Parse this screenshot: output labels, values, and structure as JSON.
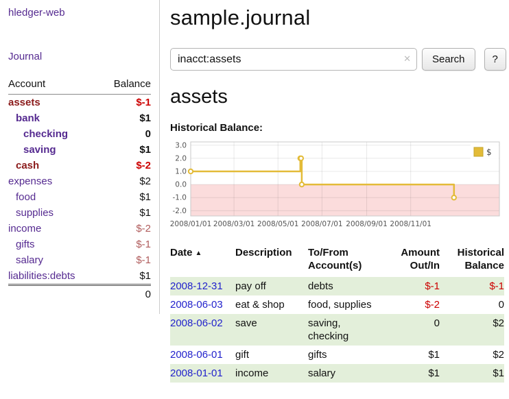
{
  "sidebar": {
    "app_title": "hledger-web",
    "journal_label": "Journal",
    "accounts": {
      "account_header": "Account",
      "balance_header": "Balance",
      "rows": [
        {
          "account": "assets",
          "balance": "$-1",
          "depth": 0,
          "bold": true,
          "acct_color": "danger",
          "bal_color": "danger"
        },
        {
          "account": "bank",
          "balance": "$1",
          "depth": 1,
          "bold": true,
          "acct_color": "link",
          "bal_color": "normal"
        },
        {
          "account": "checking",
          "balance": "0",
          "depth": 2,
          "bold": true,
          "acct_color": "link",
          "bal_color": "normal"
        },
        {
          "account": "saving",
          "balance": "$1",
          "depth": 2,
          "bold": true,
          "acct_color": "link",
          "bal_color": "normal"
        },
        {
          "account": "cash",
          "balance": "$-2",
          "depth": 1,
          "bold": true,
          "acct_color": "danger",
          "bal_color": "danger"
        },
        {
          "account": "expenses",
          "balance": "$2",
          "depth": 0,
          "bold": false,
          "acct_color": "link",
          "bal_color": "normal"
        },
        {
          "account": "food",
          "balance": "$1",
          "depth": 1,
          "bold": false,
          "acct_color": "link",
          "bal_color": "normal"
        },
        {
          "account": "supplies",
          "balance": "$1",
          "depth": 1,
          "bold": false,
          "acct_color": "link",
          "bal_color": "normal"
        },
        {
          "account": "income",
          "balance": "$-2",
          "depth": 0,
          "bold": false,
          "acct_color": "link",
          "bal_color": "rose"
        },
        {
          "account": "gifts",
          "balance": "$-1",
          "depth": 1,
          "bold": false,
          "acct_color": "link",
          "bal_color": "rose"
        },
        {
          "account": "salary",
          "balance": "$-1",
          "depth": 1,
          "bold": false,
          "acct_color": "link",
          "bal_color": "rose"
        },
        {
          "account": "liabilities:debts",
          "balance": "$1",
          "depth": 0,
          "bold": false,
          "acct_color": "link",
          "bal_color": "normal"
        }
      ],
      "total": "0"
    }
  },
  "main": {
    "title": "sample.journal",
    "search": {
      "value": "inacct:assets",
      "clear_icon": "✕",
      "button_label": "Search",
      "help_label": "?"
    },
    "heading": "assets",
    "chart_label": "Historical Balance:"
  },
  "chart_data": {
    "type": "line",
    "style": "step-after",
    "title": "Historical Balance:",
    "series": [
      {
        "name": "$",
        "color": "#e3bb38",
        "points": [
          [
            "2008-01-01",
            1
          ],
          [
            "2008-06-01",
            2
          ],
          [
            "2008-06-02",
            2
          ],
          [
            "2008-06-03",
            0
          ],
          [
            "2008-12-31",
            -1
          ]
        ],
        "points_day_offsets": [
          [
            0,
            1
          ],
          [
            152,
            2
          ],
          [
            153,
            2
          ],
          [
            154,
            0
          ],
          [
            365,
            -1
          ]
        ]
      }
    ],
    "x_ticks": [
      {
        "day": 0,
        "label": "2008/01/01"
      },
      {
        "day": 60,
        "label": "2008/03/01"
      },
      {
        "day": 121,
        "label": "2008/05/01"
      },
      {
        "day": 182,
        "label": "2008/07/01"
      },
      {
        "day": 244,
        "label": "2008/09/01"
      },
      {
        "day": 305,
        "label": "2008/11/01"
      }
    ],
    "y_ticks": [
      {
        "value": 3,
        "label": "3.0"
      },
      {
        "value": 2,
        "label": "2.0"
      },
      {
        "value": 1,
        "label": "1.0"
      },
      {
        "value": 0,
        "label": "0.0"
      },
      {
        "value": -1,
        "label": "-1.0"
      },
      {
        "value": -2,
        "label": "-2.0"
      }
    ],
    "x_domain_days": [
      0,
      428
    ],
    "y_domain": [
      -2.4,
      3.25
    ],
    "grid": true,
    "legend": {
      "label": "$",
      "position": "top-right"
    },
    "negative_region_fill": "#fbdcdc"
  },
  "register": {
    "headers": {
      "date": "Date",
      "sort_icon": "▲",
      "description": "Description",
      "accounts": "To/From\nAccount(s)",
      "amount": "Amount\nOut/In",
      "balance": "Historical\nBalance"
    },
    "rows": [
      {
        "date": "2008-12-31",
        "description": "pay off",
        "accounts": "debts",
        "amount": "$-1",
        "balance": "$-1"
      },
      {
        "date": "2008-06-03",
        "description": "eat & shop",
        "accounts": "food, supplies",
        "amount": "$-2",
        "balance": "0"
      },
      {
        "date": "2008-06-02",
        "description": "save",
        "accounts": "saving, checking",
        "amount": "0",
        "balance": "$2"
      },
      {
        "date": "2008-06-01",
        "description": "gift",
        "accounts": "gifts",
        "amount": "$1",
        "balance": "$2"
      },
      {
        "date": "2008-01-01",
        "description": "income",
        "accounts": "salary",
        "amount": "$1",
        "balance": "$1"
      }
    ]
  },
  "colors": {
    "link_purple": "#552a90",
    "account_negative": "#8b1b1b",
    "amount_negative": "#cc0000",
    "amount_negative_muted": "#b05c5c",
    "date_link_blue": "#2222cc",
    "row_green": "#e3efda",
    "chart_line_gold": "#e3bb38",
    "chart_negative_fill": "#fbdcdc"
  }
}
